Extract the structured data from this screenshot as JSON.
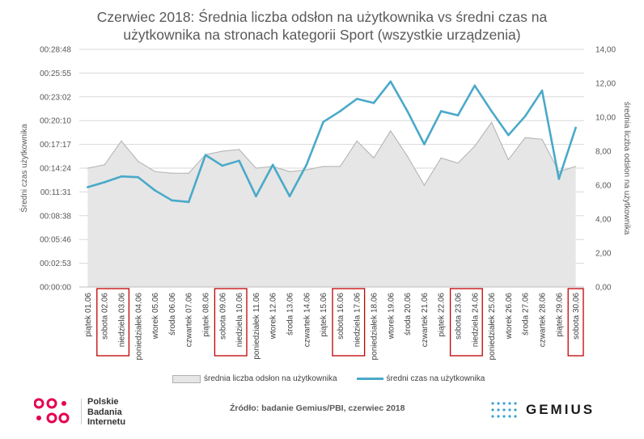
{
  "chart_data": {
    "type": "area+line",
    "title": "Czerwiec 2018: Średnia liczba odsłon na użytkownika vs średni czas na użytkownika na stronach kategorii Sport (wszystkie urządzenia)",
    "title_lines": [
      "Czerwiec 2018: Średnia liczba odsłon na użytkownika vs średni czas na",
      "użytkownika na stronach kategorii Sport (wszystkie urządzenia)"
    ],
    "y_left_label": "Średni czas użytkownika",
    "y_right_label": "średnia liczba odsłon na użytkownika",
    "y_left_ticks": [
      "00:00:00",
      "00:02:53",
      "00:05:46",
      "00:08:38",
      "00:11:31",
      "00:14:24",
      "00:17:17",
      "00:20:10",
      "00:23:02",
      "00:25:55",
      "00:28:48"
    ],
    "y_right_ticks": [
      "0,00",
      "2,00",
      "4,00",
      "6,00",
      "8,00",
      "10,00",
      "12,00",
      "14,00"
    ],
    "y_left_range_seconds": [
      0,
      1728
    ],
    "y_right_range": [
      0,
      14
    ],
    "categories": [
      "piątek 01.06",
      "sobota 02.06",
      "niedziela 03.06",
      "poniedziałek 04.06",
      "wtorek 05.06",
      "środa 06.06",
      "czwartek 07.06",
      "piątek 08.06",
      "sobota 09.06",
      "niedziela 10.06",
      "poniedziałek 11.06",
      "wtorek 12.06",
      "środa 13.06",
      "czwartek 14.06",
      "piątek 15.06",
      "sobota 16.06",
      "niedziela 17.06",
      "poniedziałek 18.06",
      "wtorek 19.06",
      "środa 20.06",
      "czwartek 21.06",
      "piątek 22.06",
      "sobota 23.06",
      "niedziela 24.06",
      "poniedziałek 25.06",
      "wtorek 26.06",
      "środa 27.06",
      "czwartek 28.06",
      "piątek 29.06",
      "sobota 30.06"
    ],
    "weekend_boxes": [
      [
        1,
        2
      ],
      [
        8,
        9
      ],
      [
        15,
        16
      ],
      [
        22,
        23
      ],
      [
        29,
        29
      ]
    ],
    "series": [
      {
        "name": "średnia liczba odsłon na użytkownika",
        "kind": "area",
        "axis": "right",
        "color": "#e6e6e6",
        "stroke": "#b0b0b0",
        "values": [
          7.0,
          7.2,
          8.6,
          7.4,
          6.8,
          6.7,
          6.7,
          7.8,
          8.0,
          8.1,
          7.0,
          7.1,
          6.8,
          6.9,
          7.1,
          7.1,
          8.6,
          7.6,
          9.2,
          7.7,
          6.0,
          7.6,
          7.3,
          8.3,
          9.7,
          7.5,
          8.8,
          8.7,
          6.8,
          7.1
        ]
      },
      {
        "name": "średni czas na użytkownika",
        "kind": "line",
        "axis": "left",
        "color": "#4aa9c9",
        "values": [
          12.1,
          12.7,
          13.4,
          13.3,
          11.7,
          10.5,
          10.3,
          16.0,
          14.7,
          15.3,
          11.0,
          14.8,
          11.0,
          14.8,
          20.0,
          21.3,
          22.8,
          22.3,
          24.9,
          21.3,
          17.3,
          21.3,
          20.8,
          24.4,
          21.3,
          18.4,
          20.7,
          23.8,
          13.1,
          19.3
        ]
      }
    ],
    "series_units": {
      "line": "minutes"
    },
    "legend": {
      "position": "bottom",
      "items": [
        "średnia liczba odsłon na użytkownika",
        "średni czas na użytkownika"
      ]
    }
  },
  "footer": {
    "pbi_logo_lines": [
      "Polskie",
      "Badania",
      "Internetu"
    ],
    "source": "Źródło: badanie Gemius/PBI, czerwiec 2018",
    "gemius_logo": "GEMIUS"
  },
  "colors": {
    "area": "#e6e6e6",
    "line": "#4aa9c9",
    "box": "#c00000",
    "pbi_red": "#e5004f",
    "gemius_dots": "#3aa0d4"
  }
}
